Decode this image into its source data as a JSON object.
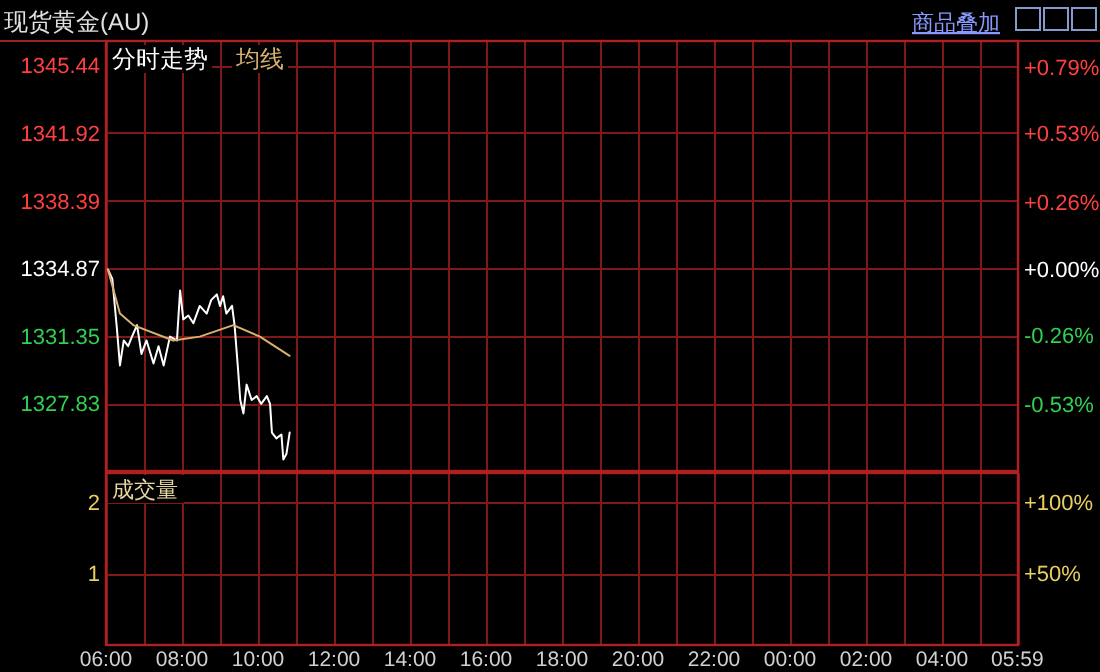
{
  "chart_data": [
    {
      "type": "line",
      "title": "现货黄金(AU)",
      "annotations": [
        "商品叠加"
      ],
      "legend": "top left",
      "grid": true,
      "tick_labels": "y",
      "xlim": [
        "--01-01T06:00",
        "--01-02T06:00"
      ],
      "xticks": [
        {
          "value": "--01-01T06:00",
          "label": null
        },
        {
          "value": "--01-01T07:00",
          "label": null
        },
        {
          "value": "--01-01T08:00",
          "label": null
        },
        {
          "value": "--01-01T09:00",
          "label": null
        },
        {
          "value": "--01-01T10:00",
          "label": null
        },
        {
          "value": "--01-01T11:00",
          "label": null
        },
        {
          "value": "--01-01T12:00",
          "label": null
        },
        {
          "value": "--01-01T13:00",
          "label": null
        },
        {
          "value": "--01-01T14:00",
          "label": null
        },
        {
          "value": "--01-01T15:00",
          "label": null
        },
        {
          "value": "--01-01T16:00",
          "label": null
        },
        {
          "value": "--01-01T17:00",
          "label": null
        },
        {
          "value": "--01-01T18:00",
          "label": null
        },
        {
          "value": "--01-01T19:00",
          "label": null
        },
        {
          "value": "--01-01T20:00",
          "label": null
        },
        {
          "value": "--01-01T21:00",
          "label": null
        },
        {
          "value": "--01-01T22:00",
          "label": null
        },
        {
          "value": "--01-01T23:00",
          "label": null
        },
        {
          "value": "--01-02T00:00",
          "label": null
        },
        {
          "value": "--01-02T01:00",
          "label": null
        },
        {
          "value": "--01-02T02:00",
          "label": null
        },
        {
          "value": "--01-02T03:00",
          "label": null
        },
        {
          "value": "--01-02T04:00",
          "label": null
        },
        {
          "value": "--01-02T05:00",
          "label": null
        }
      ],
      "ylim": [
        1324.3,
        1346.7
      ],
      "yticks": [
        1327.83,
        1331.35,
        1334.87,
        1338.39,
        1341.92,
        1345.44
      ],
      "y2lim": [
        -0.79,
        0.89
      ],
      "y2ticks": [
        {
          "value": -0.53,
          "label": "-0.53%"
        },
        {
          "value": -0.26,
          "label": "-0.26%"
        },
        {
          "value": 0,
          "label": "+0.00%"
        },
        {
          "value": 0.26,
          "label": "+0.26%"
        },
        {
          "value": 0.53,
          "label": "+0.53%"
        },
        {
          "value": 0.79,
          "label": "+0.79%"
        }
      ],
      "series": [
        {
          "name": "分时走势",
          "color": "#ffffff",
          "x": [
            "--01-01T06:03",
            "--01-01T06:10",
            "--01-01T06:17",
            "--01-01T06:22",
            "--01-01T06:28",
            "--01-01T06:35",
            "--01-01T06:41",
            "--01-01T06:49",
            "--01-01T06:56",
            "--01-01T07:04",
            "--01-01T07:15",
            "--01-01T07:23",
            "--01-01T07:31",
            "--01-01T07:41",
            "--01-01T07:52",
            "--01-01T07:57",
            "--01-01T08:02",
            "--01-01T08:10",
            "--01-01T08:18",
            "--01-01T08:28",
            "--01-01T08:39",
            "--01-01T08:46",
            "--01-01T08:55",
            "--01-01T09:00",
            "--01-01T09:05",
            "--01-01T09:10",
            "--01-01T09:19",
            "--01-01T09:23",
            "--01-01T09:28",
            "--01-01T09:32",
            "--01-01T09:37",
            "--01-01T09:42",
            "--01-01T09:50",
            "--01-01T09:58",
            "--01-01T10:05",
            "--01-01T10:14",
            "--01-01T10:19",
            "--01-01T10:22",
            "--01-01T10:29",
            "--01-01T10:37",
            "--01-01T10:40",
            "--01-01T10:45",
            "--01-01T10:50"
          ],
          "values": [
            1334.8,
            1334.3,
            1331.8,
            1329.8,
            1331.1,
            1330.8,
            1331.3,
            1331.9,
            1330.4,
            1331.1,
            1329.9,
            1330.8,
            1329.8,
            1331.3,
            1331.1,
            1333.7,
            1332.2,
            1332.4,
            1332.0,
            1332.9,
            1332.5,
            1333.2,
            1333.5,
            1332.9,
            1333.4,
            1332.5,
            1332.9,
            1331.9,
            1329.8,
            1328.0,
            1327.3,
            1328.8,
            1328.0,
            1328.2,
            1327.8,
            1328.2,
            1327.8,
            1326.3,
            1326.0,
            1326.2,
            1324.9,
            1325.2,
            1326.3
          ]
        },
        {
          "name": "均线",
          "color": "#d8b070",
          "x": [
            "--01-01T06:03",
            "--01-01T06:22",
            "--01-01T06:43",
            "--01-01T07:46",
            "--01-01T08:28",
            "--01-01T09:21",
            "--01-01T10:03",
            "--01-01T10:50"
          ],
          "values": [
            1334.8,
            1332.5,
            1331.9,
            1331.1,
            1331.3,
            1331.9,
            1331.3,
            1330.3
          ]
        }
      ]
    },
    {
      "type": "bar",
      "title": "成交量",
      "grid": true,
      "xlim": [
        "--01-01T06:00",
        "--01-02T06:00"
      ],
      "xticks": [
        {
          "value": "--01-01T06:00",
          "label": "06:00"
        },
        {
          "value": "--01-01T07:00",
          "label": null
        },
        {
          "value": "--01-01T08:00",
          "label": "08:00"
        },
        {
          "value": "--01-01T09:00",
          "label": null
        },
        {
          "value": "--01-01T10:00",
          "label": "10:00"
        },
        {
          "value": "--01-01T11:00",
          "label": null
        },
        {
          "value": "--01-01T12:00",
          "label": "12:00"
        },
        {
          "value": "--01-01T13:00",
          "label": null
        },
        {
          "value": "--01-01T14:00",
          "label": "14:00"
        },
        {
          "value": "--01-01T15:00",
          "label": null
        },
        {
          "value": "--01-01T16:00",
          "label": "16:00"
        },
        {
          "value": "--01-01T17:00",
          "label": null
        },
        {
          "value": "--01-01T18:00",
          "label": "18:00"
        },
        {
          "value": "--01-01T19:00",
          "label": null
        },
        {
          "value": "--01-01T20:00",
          "label": "20:00"
        },
        {
          "value": "--01-01T21:00",
          "label": null
        },
        {
          "value": "--01-01T22:00",
          "label": "22:00"
        },
        {
          "value": "--01-01T23:00",
          "label": null
        },
        {
          "value": "--01-02T00:00",
          "label": "00:00"
        },
        {
          "value": "--01-02T01:00",
          "label": null
        },
        {
          "value": "--01-02T02:00",
          "label": "02:00"
        },
        {
          "value": "--01-02T03:00",
          "label": null
        },
        {
          "value": "--01-02T04:00",
          "label": "04:00"
        },
        {
          "value": "--01-02T05:00",
          "label": null
        },
        {
          "value": "--01-02T05:59",
          "label": "05:59"
        }
      ],
      "ylim": [
        0,
        2.4
      ],
      "yticks": [
        1,
        2
      ],
      "y2lim": [
        0,
        120
      ],
      "y2ticks": [
        {
          "value": 50,
          "label": "+50%"
        },
        {
          "value": 100,
          "label": "+100%"
        }
      ]
    }
  ]
}
